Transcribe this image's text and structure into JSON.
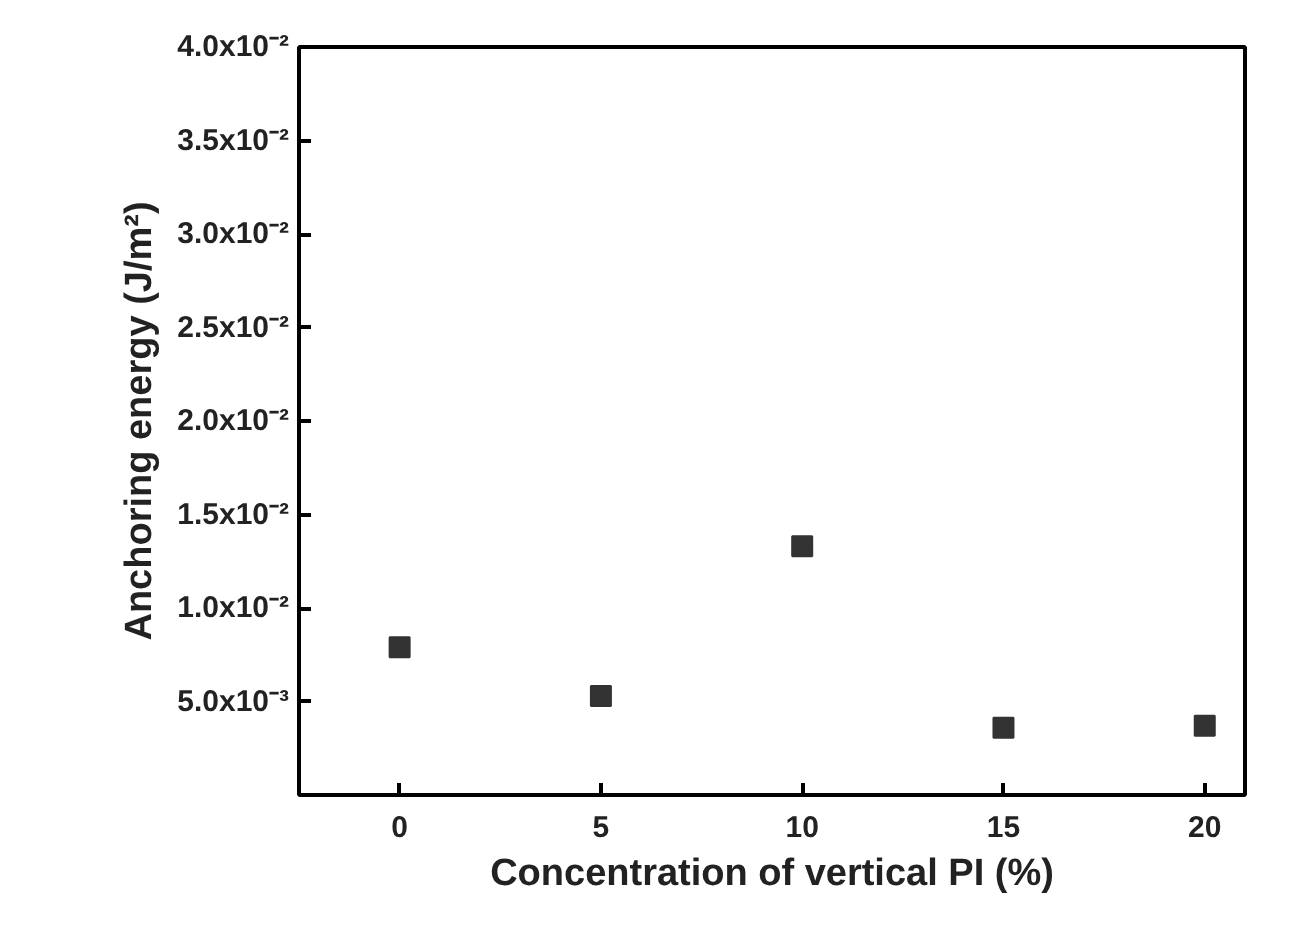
{
  "chart_data": {
    "type": "scatter",
    "xlabel": "Concentration of vertical PI (%)",
    "ylabel": "Anchoring energy (J/m²)",
    "x": [
      0,
      5,
      10,
      15,
      20
    ],
    "series": [
      {
        "color": "#333333",
        "values": [
          0.0079,
          0.0053,
          0.0133,
          0.0036,
          0.0037
        ]
      }
    ],
    "marker": "square",
    "grid": false,
    "xlim": [
      -2.5,
      21
    ],
    "xticks": [
      0,
      5,
      10,
      15,
      20
    ],
    "ylim": [
      0,
      0.04
    ],
    "yticks": [
      {
        "value": 0.005,
        "label": "5.0x10⁻³"
      },
      {
        "value": 0.01,
        "label": "1.0x10⁻²"
      },
      {
        "value": 0.015,
        "label": "1.5x10⁻²"
      },
      {
        "value": 0.02,
        "label": "2.0x10⁻²"
      },
      {
        "value": 0.025,
        "label": "2.5x10⁻²"
      },
      {
        "value": 0.03,
        "label": "3.0x10⁻²"
      },
      {
        "value": 0.035,
        "label": "3.5x10⁻²"
      },
      {
        "value": 0.04,
        "label": "4.0x10⁻²"
      }
    ]
  }
}
